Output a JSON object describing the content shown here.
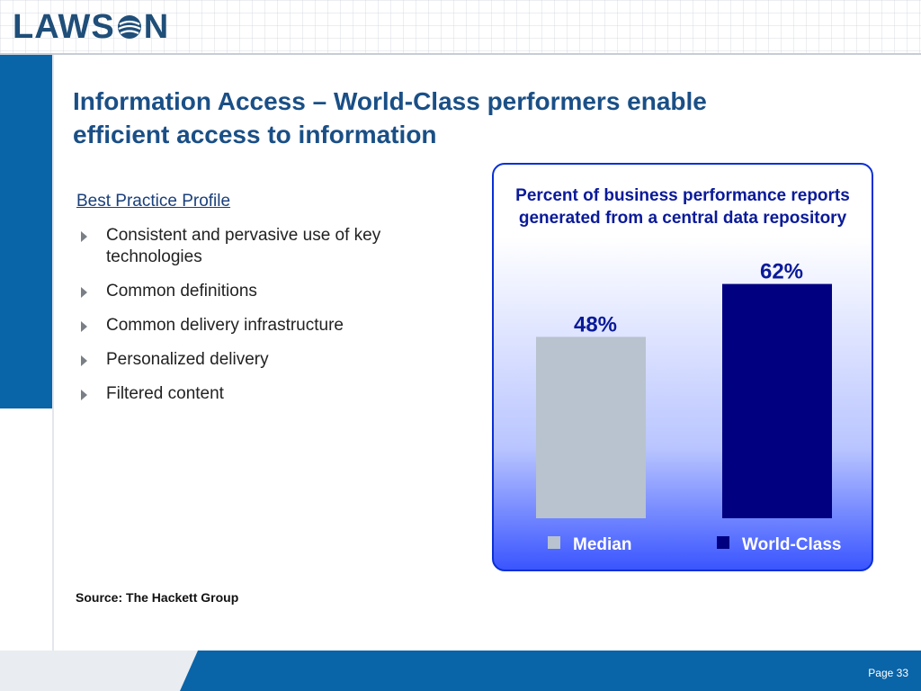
{
  "brand": {
    "logo_text_left": "LAWS",
    "logo_text_right": "N",
    "logo_letter_o_icon": "globe-icon",
    "brand_color": "#1f4e79"
  },
  "slide": {
    "title_line1": "Information Access – World-Class performers enable",
    "title_line2": "efficient access to information",
    "profile_heading": "Best Practice Profile",
    "bullets": [
      "Consistent and pervasive use of key technologies",
      "Common definitions",
      "Common delivery infrastructure",
      "Personalized delivery",
      "Filtered content"
    ],
    "source": "Source: The Hackett Group",
    "page": "Page 33"
  },
  "colors": {
    "accent": "#0a64a8",
    "title": "#1a4f86",
    "median": "#b8c3cf",
    "world_class": "#000080"
  },
  "chart_data": {
    "type": "bar",
    "title_line1": "Percent of business performance reports",
    "title_line2": "generated from a central data repository",
    "categories": [
      "Median",
      "World-Class"
    ],
    "values": [
      48,
      62
    ],
    "value_labels": [
      "48%",
      "62%"
    ],
    "colors": [
      "#b8c3cf",
      "#000080"
    ],
    "legend_position": "bottom",
    "ylim": [
      0,
      100
    ],
    "grid": false
  }
}
